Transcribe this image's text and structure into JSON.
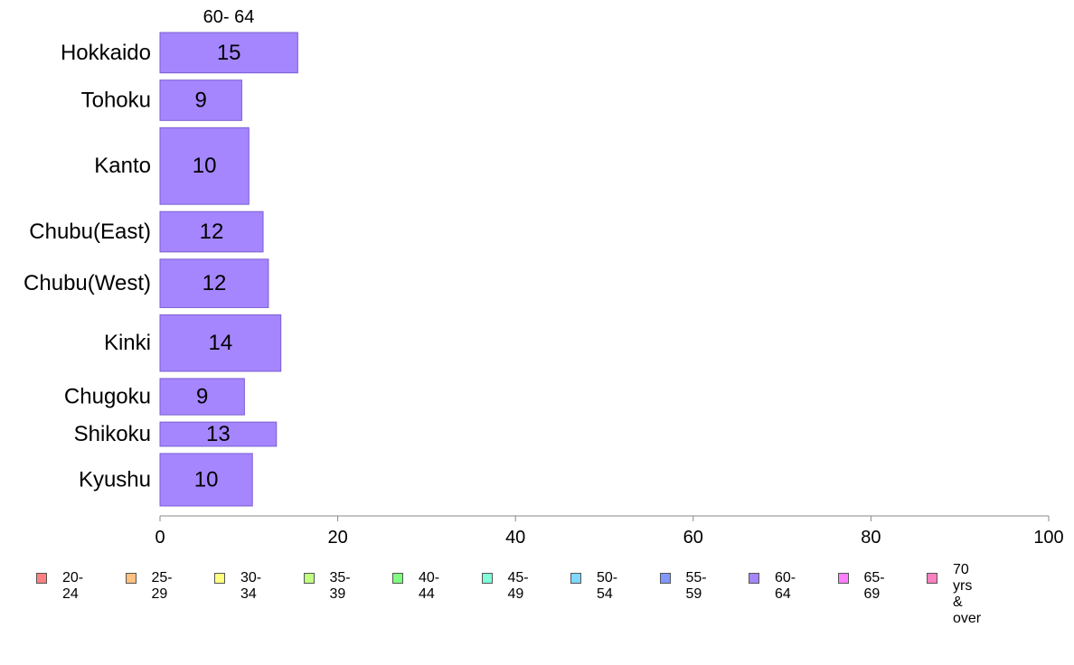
{
  "chart_data": {
    "type": "bar",
    "orientation": "horizontal",
    "series_label": "60- 64",
    "categories": [
      "Hokkaido",
      "Tohoku",
      "Kanto",
      "Chubu(East)",
      "Chubu(West)",
      "Kinki",
      "Chugoku",
      "Shikoku",
      "Kyushu"
    ],
    "values": [
      15.5,
      9.2,
      10,
      11.6,
      12.2,
      13.6,
      9.5,
      13.1,
      10.4
    ],
    "value_labels": [
      "15",
      "9",
      "10",
      "12",
      "12",
      "14",
      "9",
      "13",
      "10"
    ],
    "relative_widths": [
      1.0,
      1.0,
      1.9,
      1.0,
      1.2,
      1.4,
      0.9,
      0.6,
      1.3
    ],
    "xlim": [
      0,
      100
    ],
    "xticks": [
      "0",
      "20",
      "40",
      "60",
      "80",
      "100"
    ],
    "bar_color": "#a586ff",
    "bar_edge_color": "#7a5fd0",
    "axis_color": "#888888",
    "grid": false,
    "legend_position": "bottom",
    "legend": [
      {
        "label": "20- 24",
        "color": "#ff8080"
      },
      {
        "label": "25- 29",
        "color": "#ffc080"
      },
      {
        "label": "30- 34",
        "color": "#ffff80"
      },
      {
        "label": "35- 39",
        "color": "#c0ff80"
      },
      {
        "label": "40- 44",
        "color": "#80ff80"
      },
      {
        "label": "45- 49",
        "color": "#80ffd8"
      },
      {
        "label": "50- 54",
        "color": "#80d8ff"
      },
      {
        "label": "55- 59",
        "color": "#8098ff"
      },
      {
        "label": "60- 64",
        "color": "#a586ff"
      },
      {
        "label": "65- 69",
        "color": "#ff80ff"
      },
      {
        "label": "70 yrs\n& over",
        "color": "#ff80c0"
      }
    ]
  }
}
